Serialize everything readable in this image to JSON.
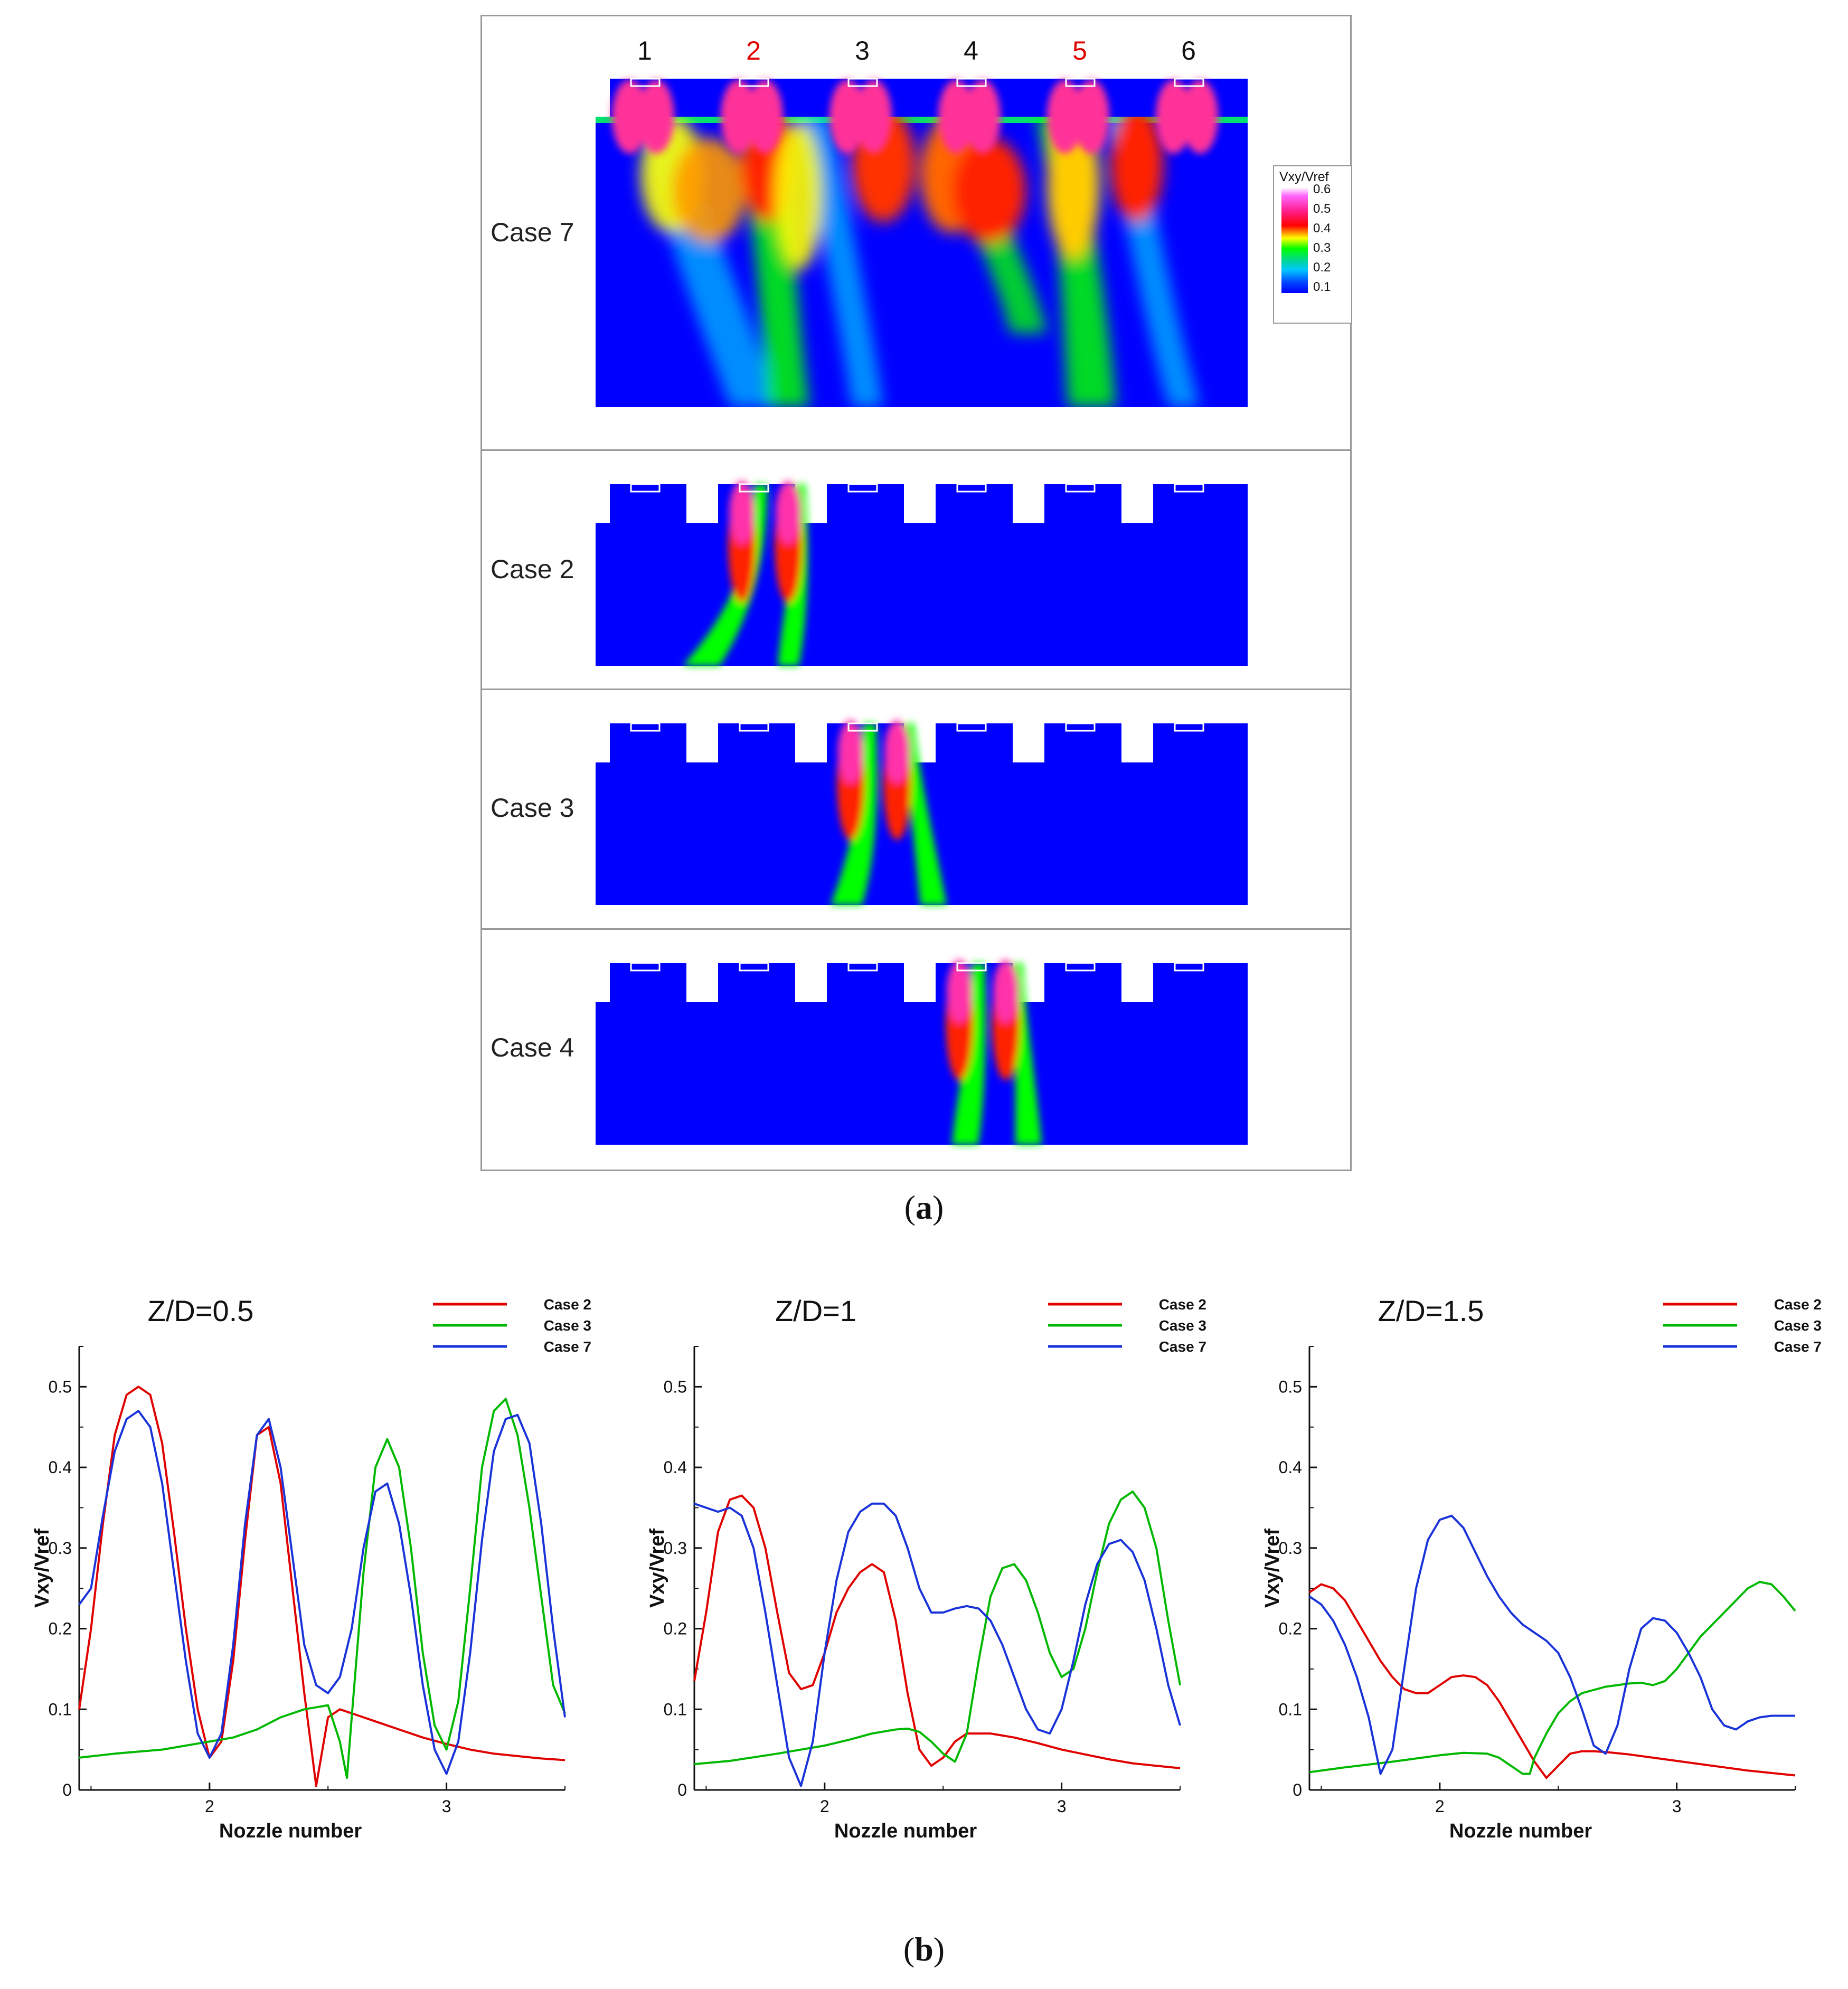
{
  "figure": {
    "caption_a": "a",
    "caption_b": "b",
    "nozzle_labels": [
      {
        "text": "1",
        "color": "#111111"
      },
      {
        "text": "2",
        "color": "#e00000"
      },
      {
        "text": "3",
        "color": "#111111"
      },
      {
        "text": "4",
        "color": "#111111"
      },
      {
        "text": "5",
        "color": "#e00000"
      },
      {
        "text": "6",
        "color": "#111111"
      }
    ],
    "contour_panels": [
      {
        "label": "Case 7",
        "active_nozzles": [
          1,
          2,
          3,
          4,
          5,
          6
        ]
      },
      {
        "label": "Case 2",
        "active_nozzles": [
          2
        ]
      },
      {
        "label": "Case 3",
        "active_nozzles": [
          3
        ]
      },
      {
        "label": "Case 4",
        "active_nozzles": [
          4
        ]
      }
    ],
    "contour_legend": {
      "title": "Vxy/Vref",
      "ticks": [
        "0.6",
        "0.5",
        "0.4",
        "0.3",
        "0.2",
        "0.1"
      ]
    }
  },
  "chart_data": [
    {
      "type": "line",
      "title": "Z/D=0.5",
      "xlabel": "Nozzle number",
      "ylabel": "Vxy/Vref",
      "xlim": [
        1.45,
        3.5
      ],
      "ylim": [
        0,
        0.55
      ],
      "xticks": [
        "2",
        "3"
      ],
      "yticks": [
        "0",
        "0.1",
        "0.2",
        "0.3",
        "0.4",
        "0.5"
      ],
      "legend": "top-right",
      "series": [
        {
          "name": "Case 2",
          "color": "#e00000",
          "x": [
            1.45,
            1.5,
            1.55,
            1.6,
            1.65,
            1.7,
            1.75,
            1.8,
            1.85,
            1.9,
            1.95,
            2.0,
            2.05,
            2.1,
            2.15,
            2.2,
            2.25,
            2.3,
            2.35,
            2.4,
            2.45,
            2.5,
            2.55,
            2.6,
            2.7,
            2.8,
            2.9,
            3.0,
            3.1,
            3.2,
            3.3,
            3.4,
            3.5
          ],
          "y": [
            0.1,
            0.2,
            0.33,
            0.44,
            0.49,
            0.5,
            0.49,
            0.43,
            0.32,
            0.2,
            0.1,
            0.04,
            0.06,
            0.16,
            0.31,
            0.44,
            0.45,
            0.38,
            0.25,
            0.12,
            0.005,
            0.09,
            0.1,
            0.095,
            0.085,
            0.075,
            0.065,
            0.057,
            0.05,
            0.045,
            0.042,
            0.039,
            0.037
          ]
        },
        {
          "name": "Case 3",
          "color": "#00b800",
          "x": [
            1.45,
            1.6,
            1.8,
            2.0,
            2.1,
            2.2,
            2.3,
            2.4,
            2.5,
            2.55,
            2.58,
            2.6,
            2.65,
            2.7,
            2.75,
            2.8,
            2.85,
            2.9,
            2.95,
            3.0,
            3.05,
            3.1,
            3.15,
            3.2,
            3.25,
            3.3,
            3.35,
            3.4,
            3.45,
            3.5
          ],
          "y": [
            0.04,
            0.045,
            0.05,
            0.06,
            0.065,
            0.075,
            0.09,
            0.1,
            0.105,
            0.06,
            0.015,
            0.09,
            0.27,
            0.4,
            0.435,
            0.4,
            0.3,
            0.17,
            0.08,
            0.05,
            0.11,
            0.25,
            0.4,
            0.47,
            0.485,
            0.44,
            0.35,
            0.24,
            0.13,
            0.095
          ]
        },
        {
          "name": "Case 7",
          "color": "#1a33d9",
          "x": [
            1.45,
            1.5,
            1.55,
            1.6,
            1.65,
            1.7,
            1.75,
            1.8,
            1.85,
            1.9,
            1.95,
            2.0,
            2.05,
            2.1,
            2.15,
            2.2,
            2.25,
            2.3,
            2.35,
            2.4,
            2.45,
            2.5,
            2.55,
            2.6,
            2.65,
            2.7,
            2.75,
            2.8,
            2.85,
            2.9,
            2.95,
            3.0,
            3.05,
            3.1,
            3.15,
            3.2,
            3.25,
            3.3,
            3.35,
            3.4,
            3.45,
            3.5
          ],
          "y": [
            0.23,
            0.25,
            0.34,
            0.42,
            0.46,
            0.47,
            0.45,
            0.38,
            0.27,
            0.16,
            0.07,
            0.04,
            0.07,
            0.18,
            0.33,
            0.44,
            0.46,
            0.4,
            0.29,
            0.18,
            0.13,
            0.12,
            0.14,
            0.2,
            0.3,
            0.37,
            0.38,
            0.33,
            0.24,
            0.13,
            0.05,
            0.02,
            0.06,
            0.17,
            0.31,
            0.42,
            0.46,
            0.465,
            0.43,
            0.33,
            0.2,
            0.09
          ]
        }
      ]
    },
    {
      "type": "line",
      "title": "Z/D=1",
      "xlabel": "Nozzle number",
      "ylabel": "Vxy/Vref",
      "xlim": [
        1.45,
        3.5
      ],
      "ylim": [
        0,
        0.55
      ],
      "xticks": [
        "2",
        "3"
      ],
      "yticks": [
        "0",
        "0.1",
        "0.2",
        "0.3",
        "0.4",
        "0.5"
      ],
      "legend": "top-right",
      "series": [
        {
          "name": "Case 2",
          "color": "#e00000",
          "x": [
            1.45,
            1.5,
            1.55,
            1.6,
            1.65,
            1.7,
            1.75,
            1.8,
            1.85,
            1.9,
            1.95,
            2.0,
            2.05,
            2.1,
            2.15,
            2.2,
            2.25,
            2.3,
            2.35,
            2.4,
            2.45,
            2.5,
            2.55,
            2.6,
            2.65,
            2.7,
            2.8,
            2.9,
            3.0,
            3.1,
            3.2,
            3.3,
            3.4,
            3.5
          ],
          "y": [
            0.135,
            0.22,
            0.32,
            0.36,
            0.365,
            0.35,
            0.3,
            0.22,
            0.145,
            0.125,
            0.13,
            0.17,
            0.22,
            0.25,
            0.27,
            0.28,
            0.27,
            0.21,
            0.12,
            0.05,
            0.03,
            0.04,
            0.06,
            0.07,
            0.07,
            0.07,
            0.065,
            0.058,
            0.05,
            0.044,
            0.038,
            0.033,
            0.03,
            0.027
          ]
        },
        {
          "name": "Case 3",
          "color": "#00b800",
          "x": [
            1.45,
            1.6,
            1.8,
            2.0,
            2.1,
            2.2,
            2.3,
            2.35,
            2.4,
            2.45,
            2.5,
            2.55,
            2.6,
            2.65,
            2.7,
            2.75,
            2.8,
            2.85,
            2.9,
            2.95,
            3.0,
            3.05,
            3.1,
            3.15,
            3.2,
            3.25,
            3.3,
            3.35,
            3.4,
            3.45,
            3.5
          ],
          "y": [
            0.032,
            0.036,
            0.045,
            0.055,
            0.062,
            0.07,
            0.075,
            0.076,
            0.072,
            0.06,
            0.045,
            0.035,
            0.07,
            0.16,
            0.24,
            0.275,
            0.28,
            0.26,
            0.22,
            0.17,
            0.14,
            0.15,
            0.2,
            0.27,
            0.33,
            0.36,
            0.37,
            0.35,
            0.3,
            0.21,
            0.13
          ]
        },
        {
          "name": "Case 7",
          "color": "#1a33d9",
          "x": [
            1.45,
            1.5,
            1.55,
            1.6,
            1.65,
            1.7,
            1.75,
            1.8,
            1.85,
            1.9,
            1.95,
            2.0,
            2.05,
            2.1,
            2.15,
            2.2,
            2.25,
            2.3,
            2.35,
            2.4,
            2.45,
            2.5,
            2.55,
            2.6,
            2.65,
            2.7,
            2.75,
            2.8,
            2.85,
            2.9,
            2.95,
            3.0,
            3.05,
            3.1,
            3.15,
            3.2,
            3.25,
            3.3,
            3.35,
            3.4,
            3.45,
            3.5
          ],
          "y": [
            0.355,
            0.35,
            0.345,
            0.35,
            0.34,
            0.3,
            0.22,
            0.13,
            0.04,
            0.005,
            0.06,
            0.17,
            0.26,
            0.32,
            0.345,
            0.355,
            0.355,
            0.34,
            0.3,
            0.25,
            0.22,
            0.22,
            0.225,
            0.228,
            0.225,
            0.21,
            0.18,
            0.14,
            0.1,
            0.075,
            0.07,
            0.1,
            0.16,
            0.23,
            0.28,
            0.305,
            0.31,
            0.295,
            0.26,
            0.2,
            0.13,
            0.08
          ]
        }
      ]
    },
    {
      "type": "line",
      "title": "Z/D=1.5",
      "xlabel": "Nozzle number",
      "ylabel": "Vxy/Vref",
      "xlim": [
        1.45,
        3.5
      ],
      "ylim": [
        0,
        0.55
      ],
      "xticks": [
        "2",
        "3"
      ],
      "yticks": [
        "0",
        "0.1",
        "0.2",
        "0.3",
        "0.4",
        "0.5"
      ],
      "legend": "top-right",
      "series": [
        {
          "name": "Case 2",
          "color": "#e00000",
          "x": [
            1.45,
            1.5,
            1.55,
            1.6,
            1.65,
            1.7,
            1.75,
            1.8,
            1.85,
            1.9,
            1.95,
            2.0,
            2.05,
            2.1,
            2.15,
            2.2,
            2.25,
            2.3,
            2.35,
            2.4,
            2.45,
            2.5,
            2.55,
            2.6,
            2.65,
            2.7,
            2.8,
            2.9,
            3.0,
            3.1,
            3.2,
            3.3,
            3.4,
            3.5
          ],
          "y": [
            0.245,
            0.255,
            0.25,
            0.235,
            0.21,
            0.185,
            0.16,
            0.14,
            0.125,
            0.12,
            0.12,
            0.13,
            0.14,
            0.142,
            0.14,
            0.13,
            0.11,
            0.085,
            0.06,
            0.035,
            0.015,
            0.03,
            0.045,
            0.048,
            0.048,
            0.047,
            0.044,
            0.04,
            0.036,
            0.032,
            0.028,
            0.024,
            0.021,
            0.018
          ]
        },
        {
          "name": "Case 3",
          "color": "#00b800",
          "x": [
            1.45,
            1.6,
            1.8,
            2.0,
            2.1,
            2.2,
            2.25,
            2.3,
            2.35,
            2.38,
            2.4,
            2.45,
            2.5,
            2.55,
            2.6,
            2.7,
            2.8,
            2.85,
            2.9,
            2.95,
            3.0,
            3.05,
            3.1,
            3.15,
            3.2,
            3.25,
            3.3,
            3.35,
            3.4,
            3.45,
            3.5
          ],
          "y": [
            0.022,
            0.028,
            0.035,
            0.043,
            0.046,
            0.045,
            0.04,
            0.03,
            0.02,
            0.02,
            0.04,
            0.07,
            0.095,
            0.11,
            0.12,
            0.128,
            0.132,
            0.133,
            0.13,
            0.135,
            0.15,
            0.17,
            0.19,
            0.205,
            0.22,
            0.235,
            0.25,
            0.258,
            0.255,
            0.24,
            0.222
          ]
        },
        {
          "name": "Case 7",
          "color": "#1a33d9",
          "x": [
            1.45,
            1.5,
            1.55,
            1.6,
            1.65,
            1.7,
            1.75,
            1.8,
            1.85,
            1.9,
            1.95,
            2.0,
            2.05,
            2.1,
            2.15,
            2.2,
            2.25,
            2.3,
            2.35,
            2.4,
            2.45,
            2.5,
            2.55,
            2.6,
            2.65,
            2.7,
            2.75,
            2.8,
            2.85,
            2.9,
            2.95,
            3.0,
            3.05,
            3.1,
            3.15,
            3.2,
            3.25,
            3.3,
            3.35,
            3.4,
            3.45,
            3.5
          ],
          "y": [
            0.24,
            0.23,
            0.21,
            0.18,
            0.14,
            0.09,
            0.02,
            0.05,
            0.15,
            0.25,
            0.31,
            0.335,
            0.34,
            0.325,
            0.295,
            0.265,
            0.24,
            0.22,
            0.205,
            0.195,
            0.185,
            0.17,
            0.14,
            0.1,
            0.055,
            0.045,
            0.08,
            0.15,
            0.2,
            0.213,
            0.21,
            0.195,
            0.17,
            0.14,
            0.1,
            0.08,
            0.075,
            0.085,
            0.09,
            0.092,
            0.092,
            0.092
          ]
        }
      ]
    }
  ]
}
